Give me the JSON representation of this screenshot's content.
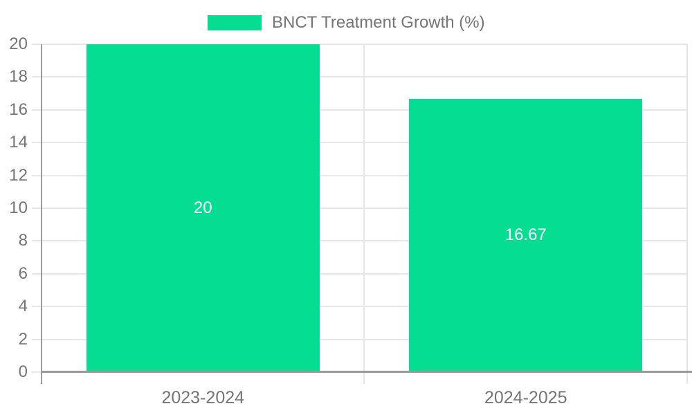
{
  "chart_data": {
    "type": "bar",
    "title": "",
    "legend": {
      "label": "BNCT Treatment Growth (%)",
      "position": "top-center"
    },
    "categories": [
      "2023-2024",
      "2024-2025"
    ],
    "values": [
      20,
      16.67
    ],
    "bar_value_labels": [
      "20",
      "16.67"
    ],
    "xlabel": "",
    "ylabel": "",
    "ylim": [
      0,
      20
    ],
    "ytick_step": 2,
    "yticks": [
      0,
      2,
      4,
      6,
      8,
      10,
      12,
      14,
      16,
      18,
      20
    ],
    "grid": true,
    "legend_position": "top-center"
  },
  "colors": {
    "bar": "#05DD92",
    "bar_label_text": "#ffffff",
    "axis_text": "#757575",
    "legend_text": "#757575",
    "gridline": "#e6e6e6",
    "axis_line": "#9a9a9a",
    "background": "#ffffff"
  }
}
